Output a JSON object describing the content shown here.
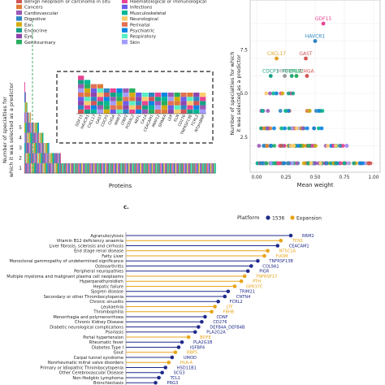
{
  "panel_c_label": "c.",
  "legend_left": {
    "col1": [
      "Benign neoplasm or carcinoma in situ",
      "Cancers",
      "Cardiovascular",
      "Digestive",
      "Ear",
      "Endocrine",
      "Eye",
      "Genitourinary"
    ],
    "col2": [
      "Haematological or immunological",
      "Infections",
      "Musculoskeletal",
      "Neurological",
      "Perinatal",
      "Psychiatric",
      "Respiratory",
      "Skin"
    ],
    "colors1": [
      "#d35454",
      "#e07b39",
      "#9b59b6",
      "#2e86c1",
      "#d4ac0d",
      "#16a085",
      "#8e44ad",
      "#27ae60"
    ],
    "colors2": [
      "#e84393",
      "#6c5ce7",
      "#00b894",
      "#fdcb6e",
      "#e17055",
      "#0984e3",
      "#55efc4",
      "#a29bfe"
    ]
  },
  "chart_data": [
    {
      "type": "bar",
      "title": "",
      "xlabel": "Proteins",
      "ylabel": "Number of specialties for which it was selected as a predictor",
      "y_ticks": [
        "1",
        "2",
        "3",
        "4",
        "5"
      ],
      "inset_categories": [
        "GDF15",
        "HAVCR1",
        "CXCL17",
        "GAST",
        "CDCP1",
        "CHGA",
        "MMP7",
        "LTBP2",
        "PODXL2",
        "NEFL",
        "CA14",
        "CEACAM1",
        "MMP12",
        "SPINK4",
        "LEP",
        "ELN",
        "CD276",
        "TNFRSF13B",
        "FCRL2",
        "NTproBNP"
      ],
      "inset_values": [
        9,
        8,
        7,
        7,
        6,
        6,
        6,
        6,
        6,
        5,
        5,
        5,
        5,
        5,
        5,
        5,
        5,
        5,
        5,
        5
      ]
    },
    {
      "type": "scatter",
      "title": "",
      "xlabel": "Mean weight",
      "ylabel": "Number of specialties for which it was selected as a predictor",
      "x_ticks": [
        "0.00",
        "0.25",
        "0.50",
        "0.75",
        "1.00"
      ],
      "y_ticks": [
        "2.5",
        "5.0",
        "7.5"
      ],
      "xlim": [
        0,
        1.0
      ],
      "ylim": [
        0.5,
        9.3
      ],
      "labeled_points": [
        {
          "label": "GDF15",
          "x": 0.57,
          "y": 9,
          "color": "#e84393"
        },
        {
          "label": "HAVCR1",
          "x": 0.5,
          "y": 8,
          "color": "#2e86c1"
        },
        {
          "label": "GAST",
          "x": 0.42,
          "y": 7,
          "color": "#d35454"
        },
        {
          "label": "CXCL17",
          "x": 0.17,
          "y": 7,
          "color": "#e0a020"
        },
        {
          "label": "MMP7",
          "x": 0.24,
          "y": 6,
          "color": "#999999"
        },
        {
          "label": "LTBP2",
          "x": 0.34,
          "y": 6,
          "color": "#27ae60"
        },
        {
          "label": "CDCP1",
          "x": 0.12,
          "y": 6,
          "color": "#16a085"
        },
        {
          "label": "PODXL2",
          "x": 0.3,
          "y": 6,
          "color": "#2aa87a"
        },
        {
          "label": "CHGA",
          "x": 0.43,
          "y": 6,
          "color": "#d35454"
        }
      ]
    },
    {
      "type": "scatter",
      "title": "",
      "legend_title": "Platform",
      "legend_position": "top",
      "series": [
        {
          "name": "1536",
          "color": "#1f2a8a"
        },
        {
          "name": "Expansion",
          "color": "#e8a317"
        }
      ],
      "categories": [
        "Agranulocytosis",
        "Vitamin B12 deficiency anaemia",
        "Liver fibrosis, sclerosis and cirrhosis",
        "End stage renal disease",
        "Fatty Liver",
        "Monoclonal gammopathy of undetermined significance",
        "Osteoarthritis",
        "Peripheral neuropathies",
        "Multiple myeloma and malignant plasma cell neoplasms",
        "Hyperparathyroidism",
        "Hepatic failure",
        "Sjogren disease",
        "Secondary or other Thrombocytopenia",
        "Chronic sinusitis",
        "Leukaemia",
        "Thrombophilia",
        "Menorrhagia and polymenorrhoea",
        "Chronic Kidney Disease",
        "Diabetic neurological complications",
        "Psoriasis",
        "Portal hypertension",
        "Rheumatic fever",
        "Diabetes Type I",
        "Gout",
        "Carpal tunnel syndrome",
        "Nonrheumatic mitral valve disorders",
        "Primary or Idiopathic Thrombocytopenia",
        "Other Cerebrovascular Disease",
        "Non-Hodgkin Lymphoma",
        "Bronchiectasis"
      ],
      "protein_labels": [
        "RRM2",
        "TCN1",
        "CEACAM1",
        "NT5C1A",
        "FUOM",
        "TNFRSF13B",
        "COL9A1",
        "PIGR",
        "TNFRSF17",
        "PTH",
        "GPR37C",
        "TRIM21",
        "CNTN4",
        "FCRL2",
        "LTF",
        "FBHB",
        "CDNF",
        "CD276",
        "DEFB4A_DEFB4B",
        "PLA2G2A",
        "BOFE",
        "PLA2G1B",
        "IGFBP4",
        "RBP5",
        "UMOD",
        "HLA-A",
        "HSD11B1",
        "SCG3",
        "TCL1",
        "PRG3"
      ],
      "values": [
        1.0,
        0.97,
        0.96,
        0.93,
        0.92,
        0.9,
        0.88,
        0.87,
        0.86,
        0.85,
        0.83,
        0.81,
        0.8,
        0.78,
        0.77,
        0.76,
        0.74,
        0.73,
        0.72,
        0.71,
        0.69,
        0.67,
        0.66,
        0.65,
        0.64,
        0.63,
        0.62,
        0.61,
        0.6,
        0.59
      ],
      "platforms": [
        "1536",
        "Expansion",
        "1536",
        "Expansion",
        "Expansion",
        "1536",
        "1536",
        "1536",
        "Expansion",
        "Expansion",
        "Expansion",
        "1536",
        "1536",
        "1536",
        "Expansion",
        "Expansion",
        "1536",
        "1536",
        "1536",
        "1536",
        "Expansion",
        "1536",
        "1536",
        "Expansion",
        "1536",
        "Expansion",
        "1536",
        "1536",
        "1536",
        "1536"
      ]
    }
  ]
}
